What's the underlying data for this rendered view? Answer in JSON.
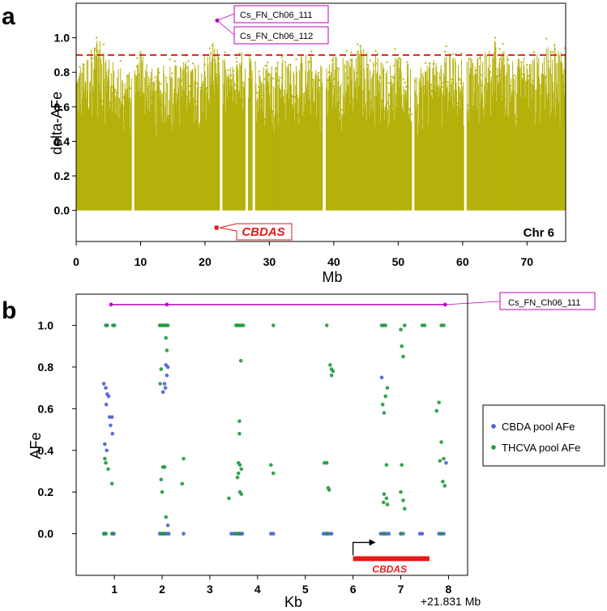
{
  "panel_a": {
    "letter": "a",
    "chrom_label": "Chr 6",
    "gene_label": "CBDAS",
    "markers": [
      "Cs_FN_Ch06_111",
      "Cs_FN_Ch06_112"
    ]
  },
  "panel_b": {
    "letter": "b",
    "gene_label": "CBDAS",
    "marker": "Cs_FN_Ch06_111",
    "offset_label": "+21.831 Mb"
  },
  "colors": {
    "manhattan": "#b5b10a",
    "threshold": "#e31a1c",
    "marker": "#c000c0",
    "cbda": "#4a5fd6",
    "thcva": "#1f9a3f",
    "gene": "#e31a1c"
  },
  "chart_data": [
    {
      "type": "scatter",
      "id": "a",
      "title": "",
      "xlabel": "Mb",
      "ylabel": "delta-AFe",
      "xlim": [
        0,
        76
      ],
      "ylim": [
        -0.18,
        1.2
      ],
      "xticks": [
        0,
        10,
        20,
        30,
        40,
        50,
        60,
        70
      ],
      "yticks": [
        0.0,
        0.2,
        0.4,
        0.6,
        0.8,
        1.0
      ],
      "threshold": 0.9,
      "series": [
        {
          "name": "",
          "profile_x": [
            0,
            2,
            3,
            4,
            5,
            6,
            8,
            9,
            10,
            11,
            12,
            14,
            16,
            18,
            20,
            21,
            22,
            23,
            24,
            25,
            26,
            27,
            28,
            29,
            30,
            32,
            34,
            36,
            38,
            40,
            42,
            44,
            46,
            48,
            50,
            52,
            54,
            56,
            58,
            60,
            62,
            64,
            65,
            66,
            68,
            70,
            72,
            74,
            76
          ],
          "profile_max": [
            0.82,
            0.92,
            1.0,
            0.97,
            0.9,
            0.85,
            0.8,
            0.86,
            0.96,
            0.9,
            0.82,
            0.85,
            0.86,
            0.88,
            0.92,
            0.98,
            0.95,
            0.88,
            0.85,
            0.86,
            0.95,
            0.9,
            0.88,
            0.84,
            0.86,
            0.88,
            0.9,
            0.92,
            0.86,
            0.92,
            0.88,
            0.96,
            0.92,
            0.86,
            0.9,
            0.84,
            0.86,
            0.88,
            0.92,
            0.9,
            0.88,
            0.94,
            1.0,
            0.95,
            0.9,
            0.88,
            0.92,
            0.96,
            0.94
          ],
          "gaps_x": [
            8.8,
            22.5,
            26.5,
            27.6,
            38.5,
            52.3,
            60.4
          ]
        }
      ],
      "markers": [
        {
          "name": "Cs_FN_Ch06_111",
          "x": 21.9,
          "y": 1.1
        },
        {
          "name": "Cs_FN_Ch06_112",
          "x": 21.9,
          "y": 1.1
        }
      ],
      "gene": {
        "name": "CBDAS",
        "x": 21.8,
        "y": -0.1
      }
    },
    {
      "type": "scatter",
      "id": "b",
      "title": "",
      "xlabel": "Kb",
      "ylabel": "AFe",
      "xlim": [
        0.2,
        8.4
      ],
      "ylim": [
        -0.2,
        1.15
      ],
      "xticks": [
        1,
        2,
        3,
        4,
        5,
        6,
        7,
        8
      ],
      "yticks": [
        0.0,
        0.2,
        0.4,
        0.6,
        0.8,
        1.0
      ],
      "legend": "right",
      "series": [
        {
          "name": "CBDA pool AFe",
          "points": [
            [
              0.78,
              0.72
            ],
            [
              0.82,
              0.7
            ],
            [
              0.85,
              0.67
            ],
            [
              0.88,
              0.66
            ],
            [
              0.83,
              0.62
            ],
            [
              0.9,
              0.56
            ],
            [
              0.95,
              0.56
            ],
            [
              0.92,
              0.52
            ],
            [
              0.96,
              0.48
            ],
            [
              0.8,
              0.43
            ],
            [
              0.84,
              0.4
            ],
            [
              0.78,
              0.0
            ],
            [
              0.82,
              0.0
            ],
            [
              0.97,
              0.0
            ],
            [
              0.99,
              0.0
            ],
            [
              2.08,
              0.81
            ],
            [
              2.12,
              0.8
            ],
            [
              2.1,
              0.76
            ],
            [
              2.05,
              0.72
            ],
            [
              2.07,
              0.7
            ],
            [
              2.02,
              0.68
            ],
            [
              2.12,
              0.04
            ],
            [
              1.95,
              0.0
            ],
            [
              1.98,
              0.0
            ],
            [
              2.02,
              0.0
            ],
            [
              2.05,
              0.0
            ],
            [
              2.1,
              0.0
            ],
            [
              2.14,
              0.0
            ],
            [
              2.45,
              0.0
            ],
            [
              3.45,
              0.0
            ],
            [
              3.5,
              0.0
            ],
            [
              3.55,
              0.0
            ],
            [
              3.6,
              0.0
            ],
            [
              3.62,
              0.0
            ],
            [
              3.65,
              0.0
            ],
            [
              3.68,
              0.0
            ],
            [
              4.28,
              0.0
            ],
            [
              4.33,
              0.0
            ],
            [
              5.38,
              0.0
            ],
            [
              5.42,
              0.0
            ],
            [
              5.46,
              0.0
            ],
            [
              5.5,
              0.0
            ],
            [
              5.55,
              0.0
            ],
            [
              6.6,
              0.75
            ],
            [
              6.58,
              0.0
            ],
            [
              6.62,
              0.0
            ],
            [
              6.66,
              0.0
            ],
            [
              6.7,
              0.0
            ],
            [
              6.75,
              0.0
            ],
            [
              7.0,
              0.0
            ],
            [
              7.05,
              0.0
            ],
            [
              7.4,
              0.0
            ],
            [
              7.45,
              0.0
            ],
            [
              7.8,
              0.0
            ],
            [
              7.85,
              0.0
            ],
            [
              7.9,
              0.0
            ],
            [
              7.95,
              0.34
            ]
          ]
        },
        {
          "name": "THCVA pool AFe",
          "points": [
            [
              0.82,
              1.0
            ],
            [
              0.85,
              1.0
            ],
            [
              0.97,
              1.0
            ],
            [
              1.0,
              1.0
            ],
            [
              0.8,
              0.36
            ],
            [
              0.82,
              0.34
            ],
            [
              0.87,
              0.31
            ],
            [
              0.95,
              0.24
            ],
            [
              0.78,
              0.0
            ],
            [
              0.82,
              0.0
            ],
            [
              0.95,
              0.0
            ],
            [
              1.95,
              1.0
            ],
            [
              1.98,
              1.0
            ],
            [
              2.02,
              1.0
            ],
            [
              2.05,
              1.0
            ],
            [
              2.08,
              1.0
            ],
            [
              2.12,
              1.0
            ],
            [
              2.08,
              0.94
            ],
            [
              2.1,
              0.88
            ],
            [
              1.98,
              0.79
            ],
            [
              1.96,
              0.72
            ],
            [
              2.02,
              0.32
            ],
            [
              2.05,
              0.32
            ],
            [
              1.98,
              0.26
            ],
            [
              2.0,
              0.2
            ],
            [
              2.08,
              0.08
            ],
            [
              2.45,
              0.36
            ],
            [
              2.42,
              0.24
            ],
            [
              2.0,
              0.0
            ],
            [
              2.05,
              0.0
            ],
            [
              3.55,
              1.0
            ],
            [
              3.58,
              1.0
            ],
            [
              3.62,
              1.0
            ],
            [
              3.66,
              1.0
            ],
            [
              3.7,
              1.0
            ],
            [
              3.65,
              0.83
            ],
            [
              3.62,
              0.54
            ],
            [
              3.62,
              0.48
            ],
            [
              3.6,
              0.34
            ],
            [
              3.63,
              0.33
            ],
            [
              3.66,
              0.31
            ],
            [
              3.6,
              0.29
            ],
            [
              3.58,
              0.27
            ],
            [
              3.63,
              0.2
            ],
            [
              3.66,
              0.19
            ],
            [
              3.4,
              0.17
            ],
            [
              3.55,
              0.0
            ],
            [
              3.62,
              0.0
            ],
            [
              4.33,
              1.0
            ],
            [
              4.28,
              0.33
            ],
            [
              4.33,
              0.29
            ],
            [
              5.45,
              1.0
            ],
            [
              5.52,
              0.81
            ],
            [
              5.55,
              0.79
            ],
            [
              5.58,
              0.78
            ],
            [
              5.55,
              0.76
            ],
            [
              5.4,
              0.34
            ],
            [
              5.45,
              0.34
            ],
            [
              5.48,
              0.22
            ],
            [
              5.5,
              0.21
            ],
            [
              5.45,
              0.0
            ],
            [
              6.6,
              1.0
            ],
            [
              6.64,
              1.0
            ],
            [
              6.68,
              1.0
            ],
            [
              6.72,
              0.7
            ],
            [
              6.68,
              0.66
            ],
            [
              6.62,
              0.62
            ],
            [
              6.65,
              0.58
            ],
            [
              6.7,
              0.33
            ],
            [
              6.65,
              0.19
            ],
            [
              6.7,
              0.17
            ],
            [
              6.64,
              0.15
            ],
            [
              6.72,
              0.14
            ],
            [
              6.65,
              0.0
            ],
            [
              7.0,
              0.98
            ],
            [
              7.08,
              1.0
            ],
            [
              7.02,
              0.9
            ],
            [
              7.05,
              0.85
            ],
            [
              7.02,
              0.33
            ],
            [
              7.0,
              0.2
            ],
            [
              7.05,
              0.16
            ],
            [
              7.08,
              0.12
            ],
            [
              7.0,
              0.0
            ],
            [
              7.45,
              1.0
            ],
            [
              7.5,
              1.0
            ],
            [
              7.85,
              1.0
            ],
            [
              7.9,
              1.0
            ],
            [
              7.8,
              0.63
            ],
            [
              7.75,
              0.59
            ],
            [
              7.85,
              0.44
            ],
            [
              7.9,
              0.36
            ],
            [
              7.82,
              0.35
            ],
            [
              7.88,
              0.25
            ],
            [
              7.92,
              0.23
            ],
            [
              7.85,
              0.0
            ]
          ]
        }
      ],
      "markers": [
        {
          "name": "Cs_FN_Ch06_111",
          "x": [
            0.93,
            2.1,
            7.93
          ],
          "y": 1.1
        }
      ],
      "gene": {
        "name": "CBDAS",
        "x": [
          6.0,
          7.6
        ],
        "y": -0.12
      }
    }
  ]
}
